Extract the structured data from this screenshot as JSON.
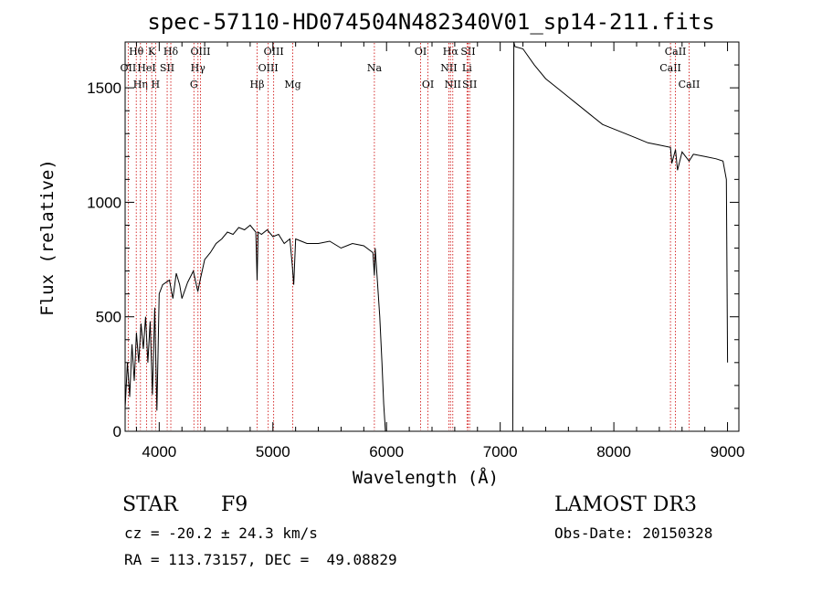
{
  "chart_data": {
    "type": "line",
    "title": "spec-57110-HD074504N482340V01_sp14-211.fits",
    "xlabel": "Wavelength (Å)",
    "ylabel": "Flux (relative)",
    "xlim": [
      3700,
      9100
    ],
    "ylim": [
      0,
      1700
    ],
    "x_ticks": [
      4000,
      5000,
      6000,
      7000,
      8000,
      9000
    ],
    "y_ticks": [
      0,
      500,
      1000,
      1500
    ],
    "x_tick_labels": [
      "4000",
      "5000",
      "6000",
      "7000",
      "8000",
      "9000"
    ],
    "y_tick_labels": [
      "0",
      "500",
      "1000",
      "1500"
    ],
    "grid": false,
    "series": [
      {
        "name": "flux",
        "color": "#000000",
        "x": [
          3700,
          3720,
          3740,
          3760,
          3780,
          3800,
          3820,
          3840,
          3860,
          3880,
          3900,
          3920,
          3940,
          3960,
          3980,
          4000,
          4030,
          4060,
          4090,
          4120,
          4150,
          4180,
          4200,
          4250,
          4300,
          4340,
          4360,
          4400,
          4450,
          4500,
          4550,
          4600,
          4650,
          4700,
          4750,
          4800,
          4850,
          4861,
          4870,
          4900,
          4950,
          5000,
          5050,
          5100,
          5150,
          5170,
          5183,
          5200,
          5250,
          5300,
          5400,
          5500,
          5600,
          5700,
          5800,
          5880,
          5893,
          5900,
          5940,
          5960,
          5975,
          5990,
          7110,
          7120,
          7130,
          7200,
          7300,
          7400,
          7500,
          7600,
          7700,
          7800,
          7900,
          8000,
          8100,
          8200,
          8300,
          8400,
          8498,
          8510,
          8542,
          8560,
          8600,
          8662,
          8700,
          8800,
          8900,
          8960,
          8990,
          9000
        ],
        "y": [
          100,
          300,
          150,
          380,
          220,
          430,
          300,
          470,
          360,
          500,
          300,
          480,
          160,
          540,
          90,
          600,
          640,
          650,
          660,
          580,
          690,
          640,
          580,
          650,
          700,
          610,
          660,
          750,
          780,
          820,
          840,
          870,
          860,
          890,
          880,
          900,
          870,
          660,
          870,
          860,
          880,
          850,
          860,
          820,
          840,
          730,
          640,
          840,
          830,
          820,
          820,
          830,
          800,
          820,
          810,
          780,
          680,
          800,
          500,
          300,
          120,
          0,
          0,
          1700,
          1680,
          1670,
          1600,
          1540,
          1500,
          1460,
          1420,
          1380,
          1340,
          1320,
          1300,
          1280,
          1260,
          1250,
          1240,
          1170,
          1230,
          1140,
          1220,
          1180,
          1210,
          1200,
          1190,
          1180,
          1100,
          300
        ]
      }
    ],
    "line_markers": [
      {
        "label": "Hθ",
        "x": 3798,
        "row": 1
      },
      {
        "label": "OII",
        "x": 3727,
        "row": 2
      },
      {
        "label": "Hη",
        "x": 3835,
        "row": 3
      },
      {
        "label": "HeI",
        "x": 3889,
        "row": 2
      },
      {
        "label": "K",
        "x": 3934,
        "row": 1
      },
      {
        "label": "H",
        "x": 3968,
        "row": 3
      },
      {
        "label": "SII",
        "x": 4070,
        "row": 2
      },
      {
        "label": "Hδ",
        "x": 4102,
        "row": 1
      },
      {
        "label": "G",
        "x": 4305,
        "row": 3
      },
      {
        "label": "Hγ",
        "x": 4341,
        "row": 2
      },
      {
        "label": "OIII",
        "x": 4363,
        "row": 1
      },
      {
        "label": "Hβ",
        "x": 4861,
        "row": 3
      },
      {
        "label": "OIII",
        "x": 4959,
        "row": 2
      },
      {
        "label": "OIII",
        "x": 5007,
        "row": 1
      },
      {
        "label": "Mg",
        "x": 5175,
        "row": 3
      },
      {
        "label": "Na",
        "x": 5893,
        "row": 2
      },
      {
        "label": "OI",
        "x": 6300,
        "row": 1
      },
      {
        "label": "OI",
        "x": 6364,
        "row": 3
      },
      {
        "label": "NII",
        "x": 6548,
        "row": 2
      },
      {
        "label": "Hα",
        "x": 6563,
        "row": 1
      },
      {
        "label": "NII",
        "x": 6583,
        "row": 3
      },
      {
        "label": "SII",
        "x": 6717,
        "row": 1
      },
      {
        "label": "Li",
        "x": 6708,
        "row": 2
      },
      {
        "label": "SII",
        "x": 6731,
        "row": 3
      },
      {
        "label": "CaII",
        "x": 8498,
        "row": 2
      },
      {
        "label": "CaII",
        "x": 8542,
        "row": 1
      },
      {
        "label": "CaII",
        "x": 8662,
        "row": 3
      }
    ],
    "marker_color": "#cc0000"
  },
  "info": {
    "class": "STAR",
    "subclass": "F9",
    "survey": "LAMOST DR3",
    "cz": "cz = -20.2 ± 24.3 km/s",
    "obs_date": "Obs-Date: 20150328",
    "coords": "RA = 113.73157, DEC =  49.08829"
  }
}
